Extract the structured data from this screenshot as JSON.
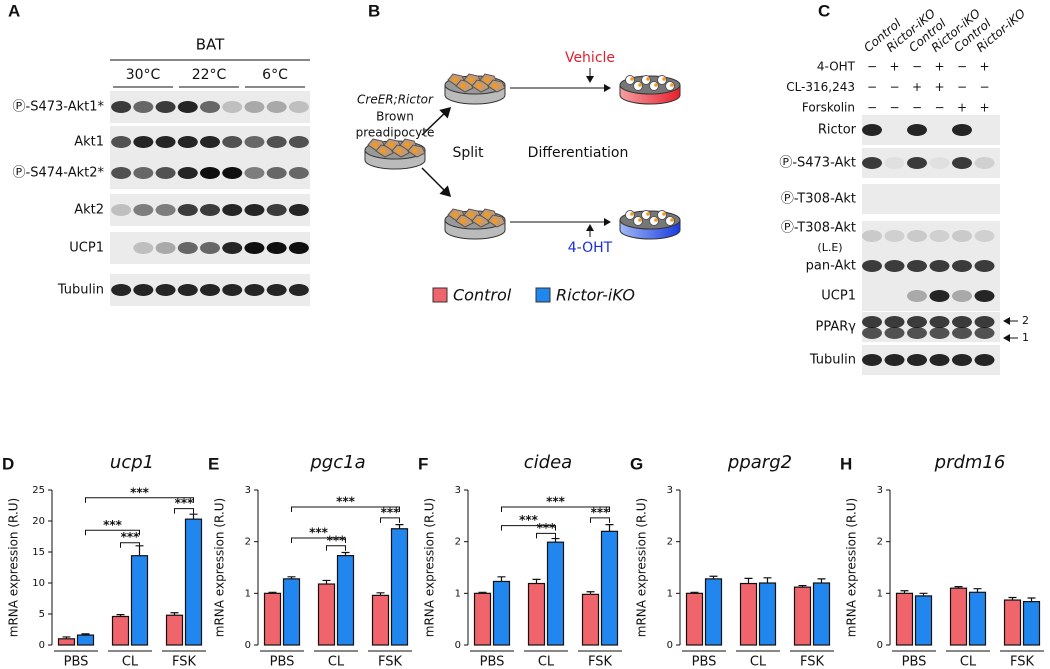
{
  "panel_a": {
    "label": "A",
    "tissue": "BAT",
    "conditions": [
      "30°C",
      "22°C",
      "6°C"
    ],
    "rows": [
      "Ⓟ-S473-Akt1*",
      "Akt1",
      "Ⓟ-S474-Akt2*",
      "Akt2",
      "UCP1",
      "Tubulin"
    ]
  },
  "panel_b": {
    "label": "B",
    "cells": [
      "CreER;Rictor",
      "Brown",
      "preadipocyte"
    ],
    "step_1": "Split",
    "step_2": "Differentiation",
    "vehicle": "Vehicle",
    "treatment": "4-OHT"
  },
  "panel_c": {
    "label": "C",
    "lanes": [
      "Control",
      "Rictor-iKO",
      "Control",
      "Rictor-iKO",
      "Control",
      "Rictor-iKO"
    ],
    "treatments": [
      {
        "name": "4-OHT",
        "marks": [
          "−",
          "+",
          "−",
          "+",
          "−",
          "+"
        ]
      },
      {
        "name": "CL-316,243",
        "marks": [
          "−",
          "−",
          "+",
          "+",
          "−",
          "−"
        ]
      },
      {
        "name": "Forskolin",
        "marks": [
          "−",
          "−",
          "−",
          "−",
          "+",
          "+"
        ]
      }
    ],
    "rows": [
      "Rictor",
      "Ⓟ-S473-Akt",
      "Ⓟ-T308-Akt",
      "Ⓟ-T308-Akt",
      "pan-Akt",
      "UCP1",
      "PPARγ",
      "Tubulin"
    ],
    "low_exposure": "(L.E)",
    "band_labels": [
      "2",
      "1"
    ]
  },
  "chart_data": [
    {
      "type": "bar",
      "panel_label": "D",
      "title": "ucp1",
      "y_label": "mRNA expression (R.U)",
      "categories": [
        "PBS",
        "CL",
        "FSK"
      ],
      "series": [
        {
          "name": "Control",
          "color": "#f0646c",
          "values": [
            1.0,
            4.6,
            4.8
          ],
          "errors": [
            0.3,
            0.3,
            0.4
          ]
        },
        {
          "name": "Rictor-iKO",
          "color": "#2186ee",
          "values": [
            1.6,
            14.4,
            20.3
          ],
          "errors": [
            0.2,
            1.6,
            0.8
          ]
        }
      ],
      "ylim": [
        0,
        25
      ],
      "yticks": [
        0,
        5,
        10,
        15,
        20,
        25
      ],
      "annotations": [
        "***",
        "***",
        "***",
        "***"
      ]
    },
    {
      "type": "bar",
      "panel_label": "E",
      "title": "pgc1a",
      "y_label": "mRNA expression (R.U)",
      "categories": [
        "PBS",
        "CL",
        "FSK"
      ],
      "series": [
        {
          "name": "Control",
          "color": "#f0646c",
          "values": [
            1.0,
            1.18,
            0.96
          ],
          "errors": [
            0.02,
            0.07,
            0.05
          ]
        },
        {
          "name": "Rictor-iKO",
          "color": "#2186ee",
          "values": [
            1.28,
            1.73,
            2.25
          ],
          "errors": [
            0.04,
            0.06,
            0.08
          ]
        }
      ],
      "ylim": [
        0,
        3
      ],
      "yticks": [
        0,
        1,
        2,
        3
      ],
      "annotations": [
        "***",
        "***",
        "***",
        "***"
      ]
    },
    {
      "type": "bar",
      "panel_label": "F",
      "title": "cidea",
      "y_label": "mRNA expression (R.U)",
      "categories": [
        "PBS",
        "CL",
        "FSK"
      ],
      "series": [
        {
          "name": "Control",
          "color": "#f0646c",
          "values": [
            1.0,
            1.19,
            0.98
          ],
          "errors": [
            0.02,
            0.08,
            0.05
          ]
        },
        {
          "name": "Rictor-iKO",
          "color": "#2186ee",
          "values": [
            1.23,
            1.99,
            2.2
          ],
          "errors": [
            0.09,
            0.07,
            0.13
          ]
        }
      ],
      "ylim": [
        0,
        3
      ],
      "yticks": [
        0,
        1,
        2,
        3
      ],
      "annotations": [
        "***",
        "***",
        "***",
        "***"
      ]
    },
    {
      "type": "bar",
      "panel_label": "G",
      "title": "pparg2",
      "y_label": "mRNA expression (R.U)",
      "categories": [
        "PBS",
        "CL",
        "FSK"
      ],
      "series": [
        {
          "name": "Control",
          "color": "#f0646c",
          "values": [
            1.0,
            1.19,
            1.12
          ],
          "errors": [
            0.02,
            0.1,
            0.03
          ]
        },
        {
          "name": "Rictor-iKO",
          "color": "#2186ee",
          "values": [
            1.28,
            1.2,
            1.2
          ],
          "errors": [
            0.05,
            0.1,
            0.08
          ]
        }
      ],
      "ylim": [
        0,
        3
      ],
      "yticks": [
        0,
        1,
        2,
        3
      ]
    },
    {
      "type": "bar",
      "panel_label": "H",
      "title": "prdm16",
      "y_label": "mRNA expression (R.U)",
      "categories": [
        "PBS",
        "CL",
        "FSK"
      ],
      "series": [
        {
          "name": "Control",
          "color": "#f0646c",
          "values": [
            1.0,
            1.1,
            0.87
          ],
          "errors": [
            0.05,
            0.03,
            0.05
          ]
        },
        {
          "name": "Rictor-iKO",
          "color": "#2186ee",
          "values": [
            0.95,
            1.02,
            0.84
          ],
          "errors": [
            0.05,
            0.07,
            0.07
          ]
        }
      ],
      "ylim": [
        0,
        3
      ],
      "yticks": [
        0,
        1,
        2,
        3
      ]
    }
  ]
}
